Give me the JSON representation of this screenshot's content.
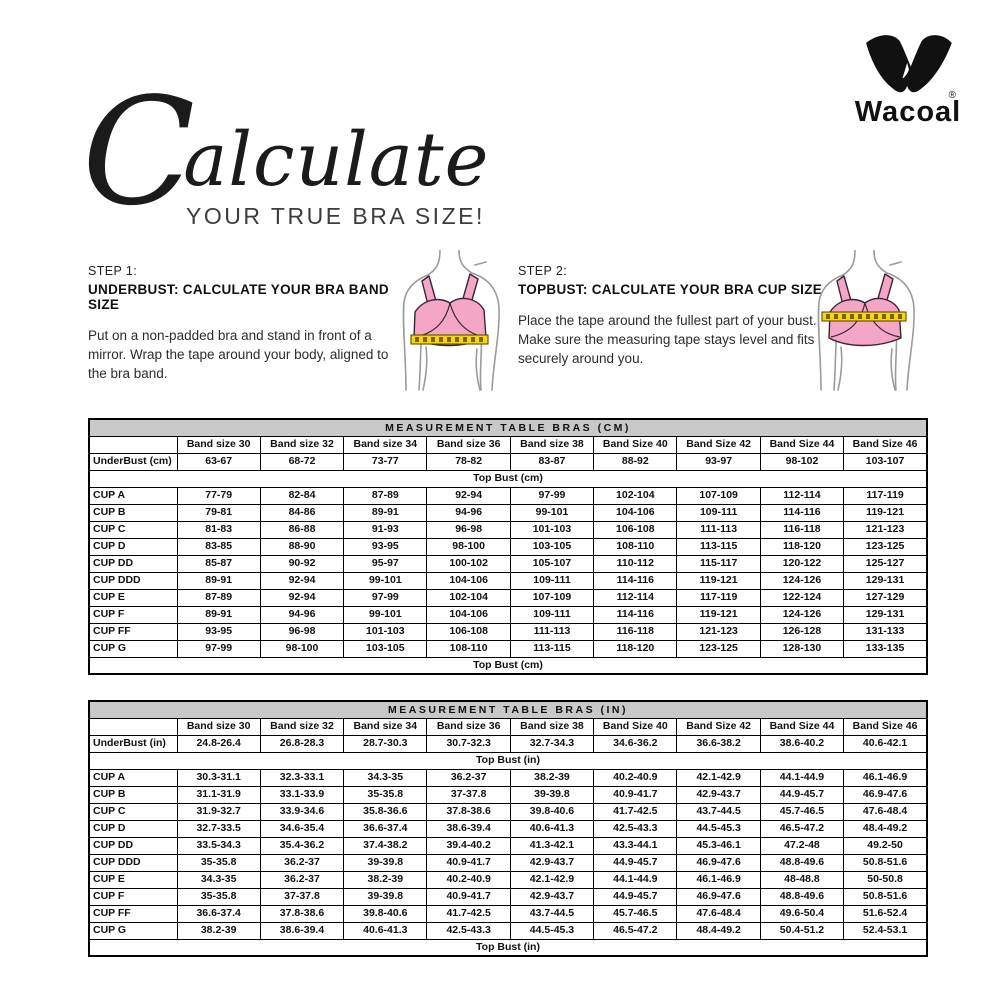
{
  "logo": {
    "brand": "Wacoal",
    "registered": "®"
  },
  "headline": {
    "script_first": "C",
    "script_rest": "alculate",
    "subtitle": "YOUR TRUE BRA SIZE!"
  },
  "steps": [
    {
      "label": "STEP 1:",
      "heading": "UNDERBUST: CALCULATE YOUR BRA BAND SIZE",
      "body": "Put on a non-padded bra and stand in front of a mirror. Wrap the tape around your body, aligned to the bra band."
    },
    {
      "label": "STEP 2:",
      "heading": "TOPBUST: CALCULATE YOUR BRA CUP SIZE",
      "body": "Place the tape around the fullest part of your bust. Make sure the measuring tape stays level and fits securely around you."
    }
  ],
  "figures": [
    {
      "name": "underbust-measurement-figure",
      "tape_position": "under band"
    },
    {
      "name": "topbust-measurement-figure",
      "tape_position": "across bust"
    }
  ],
  "colors": {
    "bra_pink": "#F4A6C6",
    "tape_yellow": "#F8D70A",
    "table_title_bg": "#C8C8C8",
    "figure_outline": "#9B9B9B",
    "ink": "#111111"
  },
  "tables": [
    {
      "title": "MEASUREMENT TABLE BRAS (CM)",
      "band_headers": [
        "Band size 30",
        "Band size 32",
        "Band size 34",
        "Band size 36",
        "Band size 38",
        "Band Size 40",
        "Band Size 42",
        "Band Size 44",
        "Band Size 46"
      ],
      "underbust": {
        "label": "UnderBust (cm)",
        "values": [
          "63-67",
          "68-72",
          "73-77",
          "78-82",
          "83-87",
          "88-92",
          "93-97",
          "98-102",
          "103-107"
        ]
      },
      "topbust_label": "Top Bust (cm)",
      "cups": [
        {
          "label": "CUP A",
          "values": [
            "77-79",
            "82-84",
            "87-89",
            "92-94",
            "97-99",
            "102-104",
            "107-109",
            "112-114",
            "117-119"
          ]
        },
        {
          "label": "CUP B",
          "values": [
            "79-81",
            "84-86",
            "89-91",
            "94-96",
            "99-101",
            "104-106",
            "109-111",
            "114-116",
            "119-121"
          ]
        },
        {
          "label": "CUP C",
          "values": [
            "81-83",
            "86-88",
            "91-93",
            "96-98",
            "101-103",
            "106-108",
            "111-113",
            "116-118",
            "121-123"
          ]
        },
        {
          "label": "CUP D",
          "values": [
            "83-85",
            "88-90",
            "93-95",
            "98-100",
            "103-105",
            "108-110",
            "113-115",
            "118-120",
            "123-125"
          ]
        },
        {
          "label": "CUP DD",
          "values": [
            "85-87",
            "90-92",
            "95-97",
            "100-102",
            "105-107",
            "110-112",
            "115-117",
            "120-122",
            "125-127"
          ]
        },
        {
          "label": "CUP DDD",
          "values": [
            "89-91",
            "92-94",
            "99-101",
            "104-106",
            "109-111",
            "114-116",
            "119-121",
            "124-126",
            "129-131"
          ]
        },
        {
          "label": "CUP E",
          "values": [
            "87-89",
            "92-94",
            "97-99",
            "102-104",
            "107-109",
            "112-114",
            "117-119",
            "122-124",
            "127-129"
          ]
        },
        {
          "label": "CUP F",
          "values": [
            "89-91",
            "94-96",
            "99-101",
            "104-106",
            "109-111",
            "114-116",
            "119-121",
            "124-126",
            "129-131"
          ]
        },
        {
          "label": "CUP FF",
          "values": [
            "93-95",
            "96-98",
            "101-103",
            "106-108",
            "111-113",
            "116-118",
            "121-123",
            "126-128",
            "131-133"
          ]
        },
        {
          "label": "CUP G",
          "values": [
            "97-99",
            "98-100",
            "103-105",
            "108-110",
            "113-115",
            "118-120",
            "123-125",
            "128-130",
            "133-135"
          ]
        }
      ]
    },
    {
      "title": "MEASUREMENT TABLE BRAS (IN)",
      "band_headers": [
        "Band size 30",
        "Band size 32",
        "Band size 34",
        "Band size 36",
        "Band size 38",
        "Band Size 40",
        "Band Size 42",
        "Band Size 44",
        "Band Size 46"
      ],
      "underbust": {
        "label": "UnderBust (in)",
        "values": [
          "24.8-26.4",
          "26.8-28.3",
          "28.7-30.3",
          "30.7-32.3",
          "32.7-34.3",
          "34.6-36.2",
          "36.6-38.2",
          "38.6-40.2",
          "40.6-42.1"
        ]
      },
      "topbust_label": "Top Bust (in)",
      "cups": [
        {
          "label": "CUP A",
          "values": [
            "30.3-31.1",
            "32.3-33.1",
            "34.3-35",
            "36.2-37",
            "38.2-39",
            "40.2-40.9",
            "42.1-42.9",
            "44.1-44.9",
            "46.1-46.9"
          ]
        },
        {
          "label": "CUP B",
          "values": [
            "31.1-31.9",
            "33.1-33.9",
            "35-35.8",
            "37-37.8",
            "39-39.8",
            "40.9-41.7",
            "42.9-43.7",
            "44.9-45.7",
            "46.9-47.6"
          ]
        },
        {
          "label": "CUP C",
          "values": [
            "31.9-32.7",
            "33.9-34.6",
            "35.8-36.6",
            "37.8-38.6",
            "39.8-40.6",
            "41.7-42.5",
            "43.7-44.5",
            "45.7-46.5",
            "47.6-48.4"
          ]
        },
        {
          "label": "CUP D",
          "values": [
            "32.7-33.5",
            "34.6-35.4",
            "36.6-37.4",
            "38.6-39.4",
            "40.6-41.3",
            "42.5-43.3",
            "44.5-45.3",
            "46.5-47.2",
            "48.4-49.2"
          ]
        },
        {
          "label": "CUP DD",
          "values": [
            "33.5-34.3",
            "35.4-36.2",
            "37.4-38.2",
            "39.4-40.2",
            "41.3-42.1",
            "43.3-44.1",
            "45.3-46.1",
            "47.2-48",
            "49.2-50"
          ]
        },
        {
          "label": "CUP DDD",
          "values": [
            "35-35.8",
            "36.2-37",
            "39-39.8",
            "40.9-41.7",
            "42.9-43.7",
            "44.9-45.7",
            "46.9-47.6",
            "48.8-49.6",
            "50.8-51.6"
          ]
        },
        {
          "label": "CUP E",
          "values": [
            "34.3-35",
            "36.2-37",
            "38.2-39",
            "40.2-40.9",
            "42.1-42.9",
            "44.1-44.9",
            "46.1-46.9",
            "48-48.8",
            "50-50.8"
          ]
        },
        {
          "label": "CUP F",
          "values": [
            "35-35.8",
            "37-37.8",
            "39-39.8",
            "40.9-41.7",
            "42.9-43.7",
            "44.9-45.7",
            "46.9-47.6",
            "48.8-49.6",
            "50.8-51.6"
          ]
        },
        {
          "label": "CUP FF",
          "values": [
            "36.6-37.4",
            "37.8-38.6",
            "39.8-40.6",
            "41.7-42.5",
            "43.7-44.5",
            "45.7-46.5",
            "47.6-48.4",
            "49.6-50.4",
            "51.6-52.4"
          ]
        },
        {
          "label": "CUP G",
          "values": [
            "38.2-39",
            "38.6-39.4",
            "40.6-41.3",
            "42.5-43.3",
            "44.5-45.3",
            "46.5-47.2",
            "48.4-49.2",
            "50.4-51.2",
            "52.4-53.1"
          ]
        }
      ]
    }
  ]
}
